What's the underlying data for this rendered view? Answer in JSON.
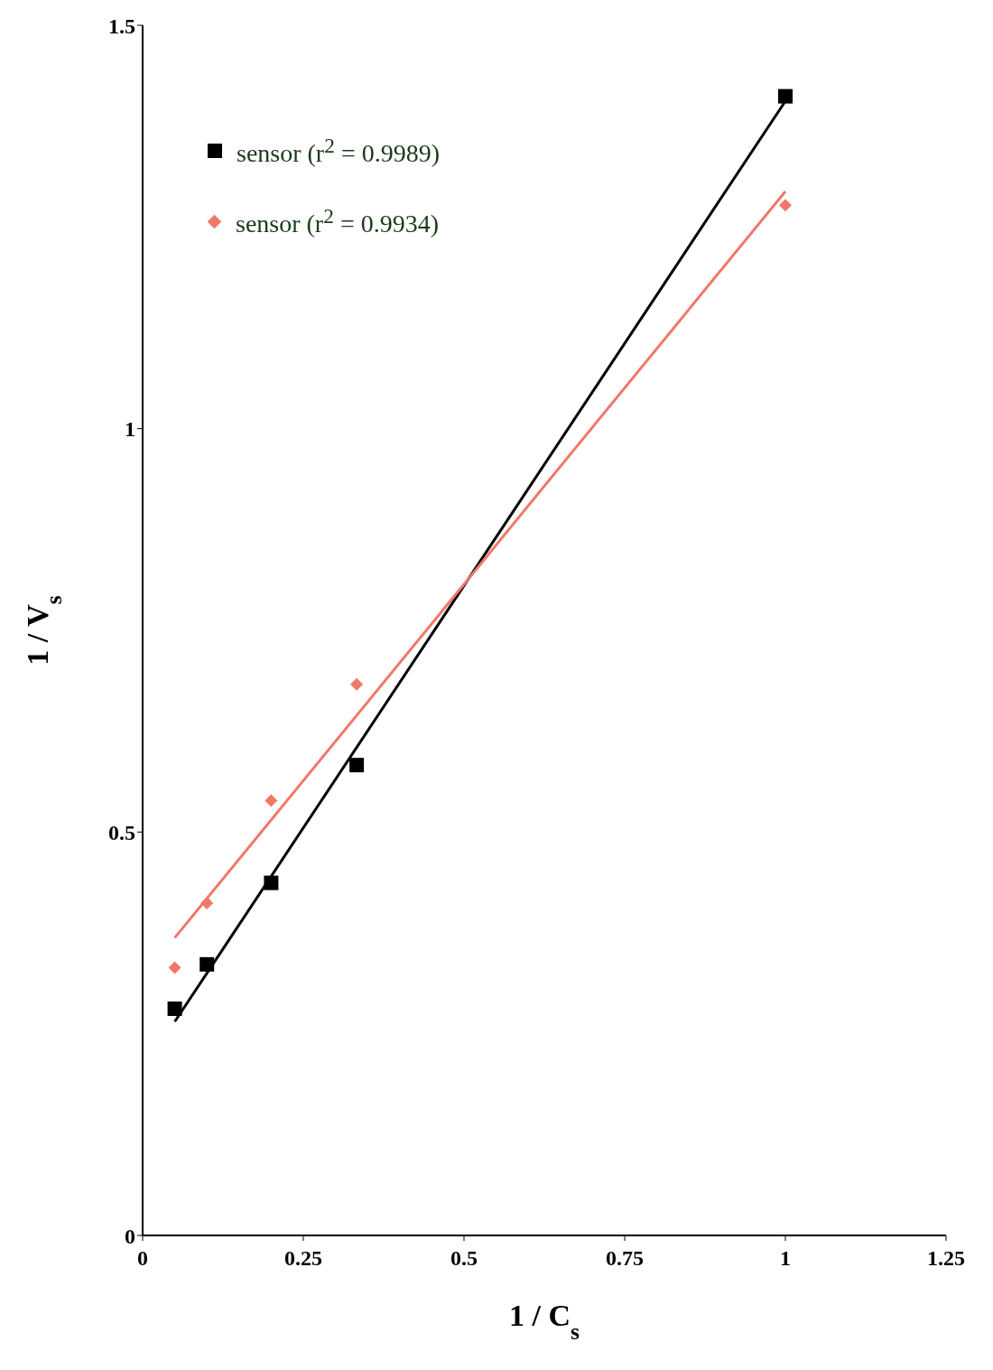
{
  "chart_data": {
    "type": "scatter",
    "xlabel": "1 / C$_{s}$",
    "ylabel": "1 / V$_{s}$",
    "xlim": [
      0,
      1.25
    ],
    "xticks": [
      0,
      0.25,
      0.5,
      0.75,
      1,
      1.25
    ],
    "ylim": [
      0,
      1.5
    ],
    "yticks": [
      0,
      0.5,
      1,
      1.5
    ],
    "grid": false,
    "legend": "top left",
    "series": [
      {
        "name": "sensor (r$^{2}$ = 0.9989)",
        "marker": "square",
        "color": "#000000",
        "x": [
          0.05,
          0.1,
          0.2,
          0.333,
          1
        ],
        "values": [
          0.281,
          0.336,
          0.437,
          0.583,
          1.412
        ]
      },
      {
        "name": "sensor (r$^{2}$ = 0.9934)",
        "marker": "diamond",
        "color": "#f0786a",
        "x": [
          0.05,
          0.1,
          0.2,
          0.333,
          1
        ],
        "values": [
          0.332,
          0.412,
          0.539,
          0.683,
          1.277
        ]
      },
      {
        "type": "line",
        "color": "#000000",
        "x": [
          0.05,
          1
        ],
        "values": [
          0.265,
          1.406
        ]
      },
      {
        "type": "line",
        "color": "#f0786a",
        "x": [
          0.05,
          1
        ],
        "values": [
          0.369,
          1.294
        ]
      }
    ]
  }
}
